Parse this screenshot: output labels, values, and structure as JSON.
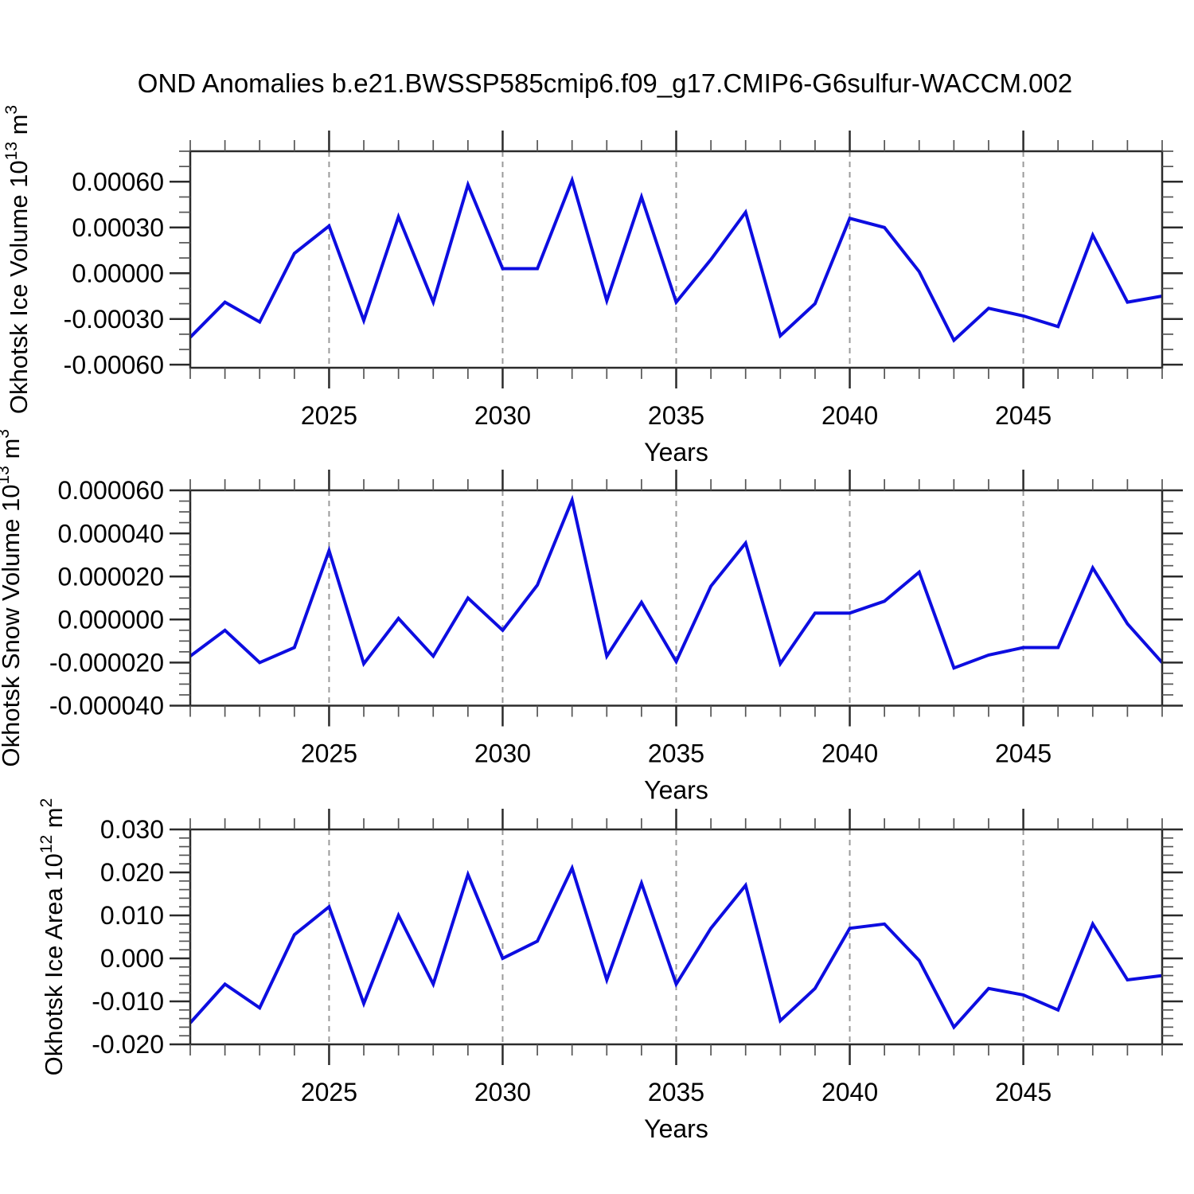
{
  "title": "OND Anomalies b.e21.BWSSP585cmip6.f09_g17.CMIP6-G6sulfur-WACCM.002",
  "colors": {
    "line": "#0d0de0",
    "frame": "#2b2b2b",
    "grid": "#9a9a9a",
    "minor_tick": "#555555",
    "text": "#000000"
  },
  "chart_data": [
    {
      "type": "line",
      "name": "okhotsk-ice-volume",
      "ylabel": "Okhotsk Ice Volume 10^13 m^3",
      "ylabel_segments": [
        [
          "t",
          "Okhotsk Ice Volume 10"
        ],
        [
          "s",
          "13"
        ],
        [
          "t",
          " m"
        ],
        [
          "s",
          "3"
        ]
      ],
      "xlabel": "Years",
      "x": [
        2021,
        2022,
        2023,
        2024,
        2025,
        2026,
        2027,
        2028,
        2029,
        2030,
        2031,
        2032,
        2033,
        2034,
        2035,
        2036,
        2037,
        2038,
        2039,
        2040,
        2041,
        2042,
        2043,
        2044,
        2045,
        2046,
        2047,
        2048,
        2049
      ],
      "values": [
        -0.00042,
        -0.00019,
        -0.00032,
        0.00013,
        0.00031,
        -0.00031,
        0.00037,
        -0.00019,
        0.00058,
        3e-05,
        3e-05,
        0.00061,
        -0.00018,
        0.0005,
        -0.00019,
        9e-05,
        0.0004,
        -0.00041,
        -0.0002,
        0.00036,
        0.0003,
        1e-05,
        -0.00044,
        -0.00023,
        -0.00028,
        -0.00035,
        0.00025,
        -0.00019,
        -0.00015
      ],
      "xlim": [
        2021,
        2049
      ],
      "ylim": [
        -0.00062,
        0.0008
      ],
      "yticks": {
        "values": [
          -0.0006,
          -0.0003,
          0,
          0.0003,
          0.0006
        ],
        "labels": [
          "-0.00060",
          "-0.00030",
          "0.00000",
          "0.00030",
          "0.00060"
        ],
        "minor_step": 0.0001
      },
      "xticks": {
        "values": [
          2025,
          2030,
          2035,
          2040,
          2045
        ],
        "labels": [
          "2025",
          "2030",
          "2035",
          "2040",
          "2045"
        ],
        "minor_step": 1
      },
      "grid": "vertical-dashed"
    },
    {
      "type": "line",
      "name": "okhotsk-snow-volume",
      "ylabel": "Okhotsk Snow Volume 10^13 m^3",
      "ylabel_segments": [
        [
          "t",
          "Okhotsk Snow Volume 10"
        ],
        [
          "s",
          "13"
        ],
        [
          "t",
          " m"
        ],
        [
          "s",
          "3"
        ]
      ],
      "xlabel": "Years",
      "x": [
        2021,
        2022,
        2023,
        2024,
        2025,
        2026,
        2027,
        2028,
        2029,
        2030,
        2031,
        2032,
        2033,
        2034,
        2035,
        2036,
        2037,
        2038,
        2039,
        2040,
        2041,
        2042,
        2043,
        2044,
        2045,
        2046,
        2047,
        2048,
        2049
      ],
      "values": [
        -1.7e-05,
        -5e-06,
        -2e-05,
        -1.3e-05,
        3.2e-05,
        -2.05e-05,
        5e-07,
        -1.7e-05,
        1e-05,
        -5e-06,
        1.6e-05,
        5.55e-05,
        -1.7e-05,
        8e-06,
        -1.95e-05,
        1.55e-05,
        3.55e-05,
        -2.05e-05,
        3e-06,
        3e-06,
        8.5e-06,
        2.2e-05,
        -2.25e-05,
        -1.65e-05,
        -1.3e-05,
        -1.3e-05,
        2.4e-05,
        -2e-06,
        -2e-05
      ],
      "xlim": [
        2021,
        2049
      ],
      "ylim": [
        -4e-05,
        6e-05
      ],
      "yticks": {
        "values": [
          -4e-05,
          -2e-05,
          0,
          2e-05,
          4e-05,
          6e-05
        ],
        "labels": [
          "-0.000040",
          "-0.000020",
          "0.000000",
          "0.000020",
          "0.000040",
          "0.000060"
        ],
        "minor_step": 5e-06
      },
      "xticks": {
        "values": [
          2025,
          2030,
          2035,
          2040,
          2045
        ],
        "labels": [
          "2025",
          "2030",
          "2035",
          "2040",
          "2045"
        ],
        "minor_step": 1
      },
      "grid": "vertical-dashed"
    },
    {
      "type": "line",
      "name": "okhotsk-ice-area",
      "ylabel": "Okhotsk Ice Area 10^12 m^2",
      "ylabel_segments": [
        [
          "t",
          "Okhotsk Ice Area 10"
        ],
        [
          "s",
          "12"
        ],
        [
          "t",
          " m"
        ],
        [
          "s",
          "2"
        ]
      ],
      "xlabel": "Years",
      "x": [
        2021,
        2022,
        2023,
        2024,
        2025,
        2026,
        2027,
        2028,
        2029,
        2030,
        2031,
        2032,
        2033,
        2034,
        2035,
        2036,
        2037,
        2038,
        2039,
        2040,
        2041,
        2042,
        2043,
        2044,
        2045,
        2046,
        2047,
        2048,
        2049
      ],
      "values": [
        -0.015,
        -0.006,
        -0.0115,
        0.0055,
        0.012,
        -0.0105,
        0.01,
        -0.006,
        0.0195,
        0.0,
        0.004,
        0.021,
        -0.005,
        0.0175,
        -0.006,
        0.007,
        0.017,
        -0.0145,
        -0.007,
        0.007,
        0.008,
        -0.0005,
        -0.016,
        -0.007,
        -0.0085,
        -0.012,
        0.008,
        -0.005,
        -0.004
      ],
      "xlim": [
        2021,
        2049
      ],
      "ylim": [
        -0.02,
        0.03
      ],
      "yticks": {
        "values": [
          -0.02,
          -0.01,
          0,
          0.01,
          0.02,
          0.03
        ],
        "labels": [
          "-0.020",
          "-0.010",
          "0.000",
          "0.010",
          "0.020",
          "0.030"
        ],
        "minor_step": 0.002
      },
      "xticks": {
        "values": [
          2025,
          2030,
          2035,
          2040,
          2045
        ],
        "labels": [
          "2025",
          "2030",
          "2035",
          "2040",
          "2045"
        ],
        "minor_step": 1
      },
      "grid": "vertical-dashed"
    }
  ]
}
